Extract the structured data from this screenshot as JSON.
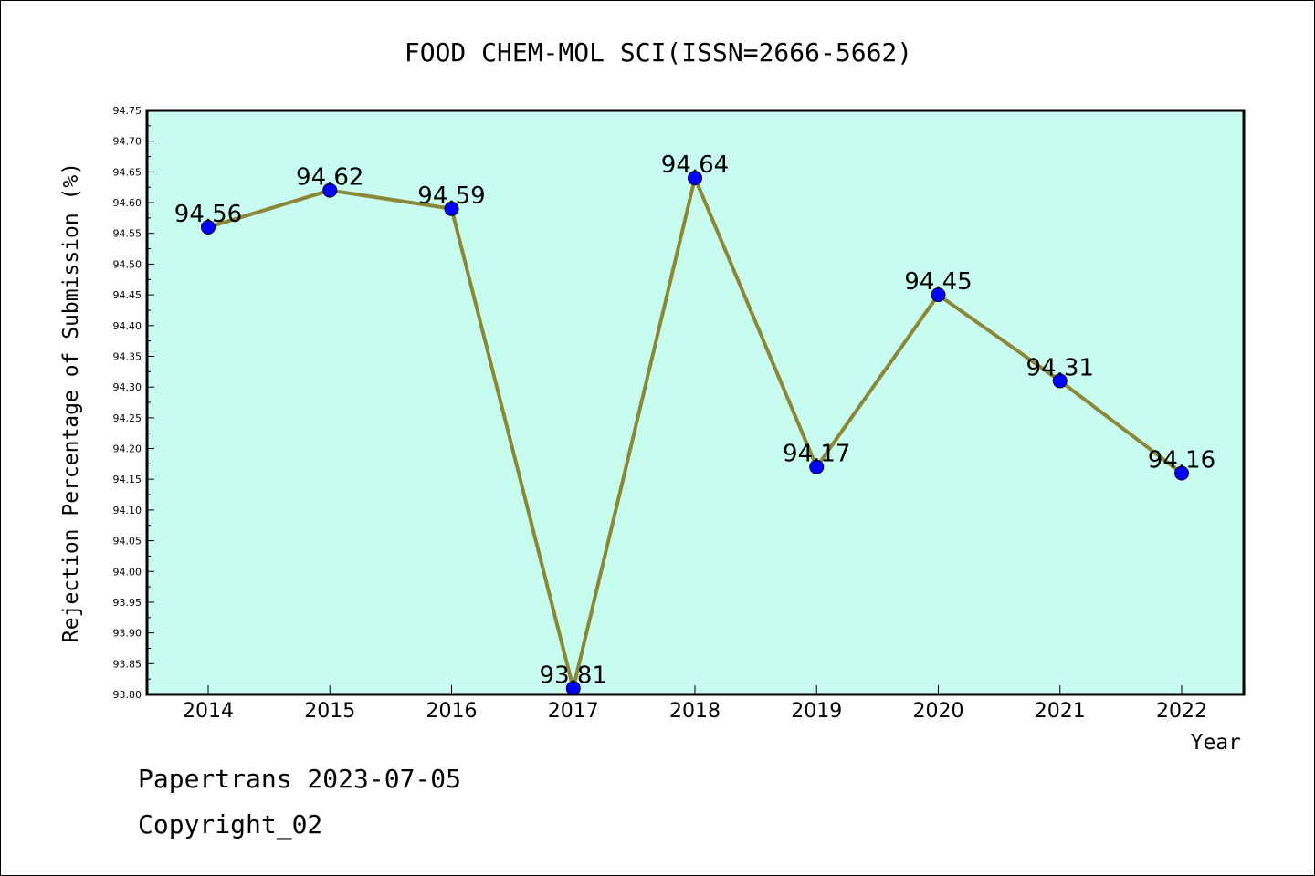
{
  "chart_data": {
    "type": "line",
    "title": "FOOD CHEM-MOL SCI(ISSN=2666-5662)",
    "xlabel": "Year",
    "ylabel": "Rejection Percentage of Submission (%)",
    "categories": [
      "2014",
      "2015",
      "2016",
      "2017",
      "2018",
      "2019",
      "2020",
      "2021",
      "2022"
    ],
    "series": [
      {
        "values": [
          94.56,
          94.62,
          94.59,
          93.81,
          94.64,
          94.17,
          94.45,
          94.31,
          94.16
        ]
      }
    ],
    "data_labels": [
      "94.56",
      "94.62",
      "94.59",
      "93.81",
      "94.64",
      "94.17",
      "94.45",
      "94.31",
      "94.16"
    ],
    "ylim": [
      93.8,
      94.75
    ],
    "yticks": [
      "93.80",
      "93.85",
      "93.90",
      "93.95",
      "94.00",
      "94.05",
      "94.10",
      "94.15",
      "94.20",
      "94.25",
      "94.30",
      "94.35",
      "94.40",
      "94.45",
      "94.50",
      "94.55",
      "94.60",
      "94.65",
      "94.70",
      "94.75"
    ],
    "grid": false,
    "colors": {
      "plot_background": "#c8fcee",
      "line": "#8b8738",
      "marker": "#0000ff"
    }
  },
  "footer": {
    "line1": "Papertrans 2023-07-05",
    "line2": "Copyright_02"
  }
}
